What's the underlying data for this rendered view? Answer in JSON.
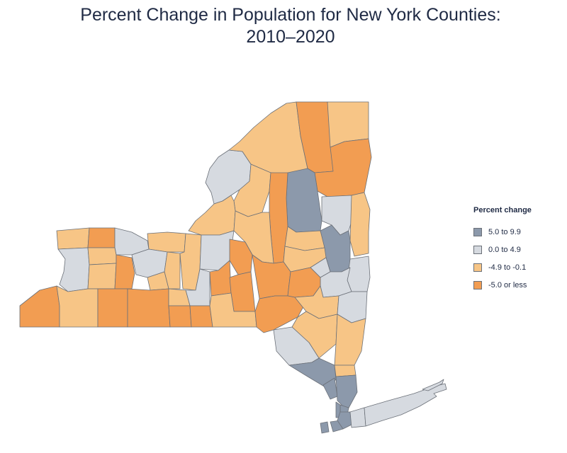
{
  "title_line1": "Percent Change in Population for New York Counties:",
  "title_line2": "2010–2020",
  "legend": {
    "title": "Percent change",
    "items": [
      {
        "label": "5.0 to 9.9",
        "color": "#8c99ab"
      },
      {
        "label": "0.0 to 4.9",
        "color": "#d6dae0"
      },
      {
        "label": "-4.9 to -0.1",
        "color": "#f7c586"
      },
      {
        "label": "-5.0 or less",
        "color": "#f29d52"
      }
    ]
  }
}
